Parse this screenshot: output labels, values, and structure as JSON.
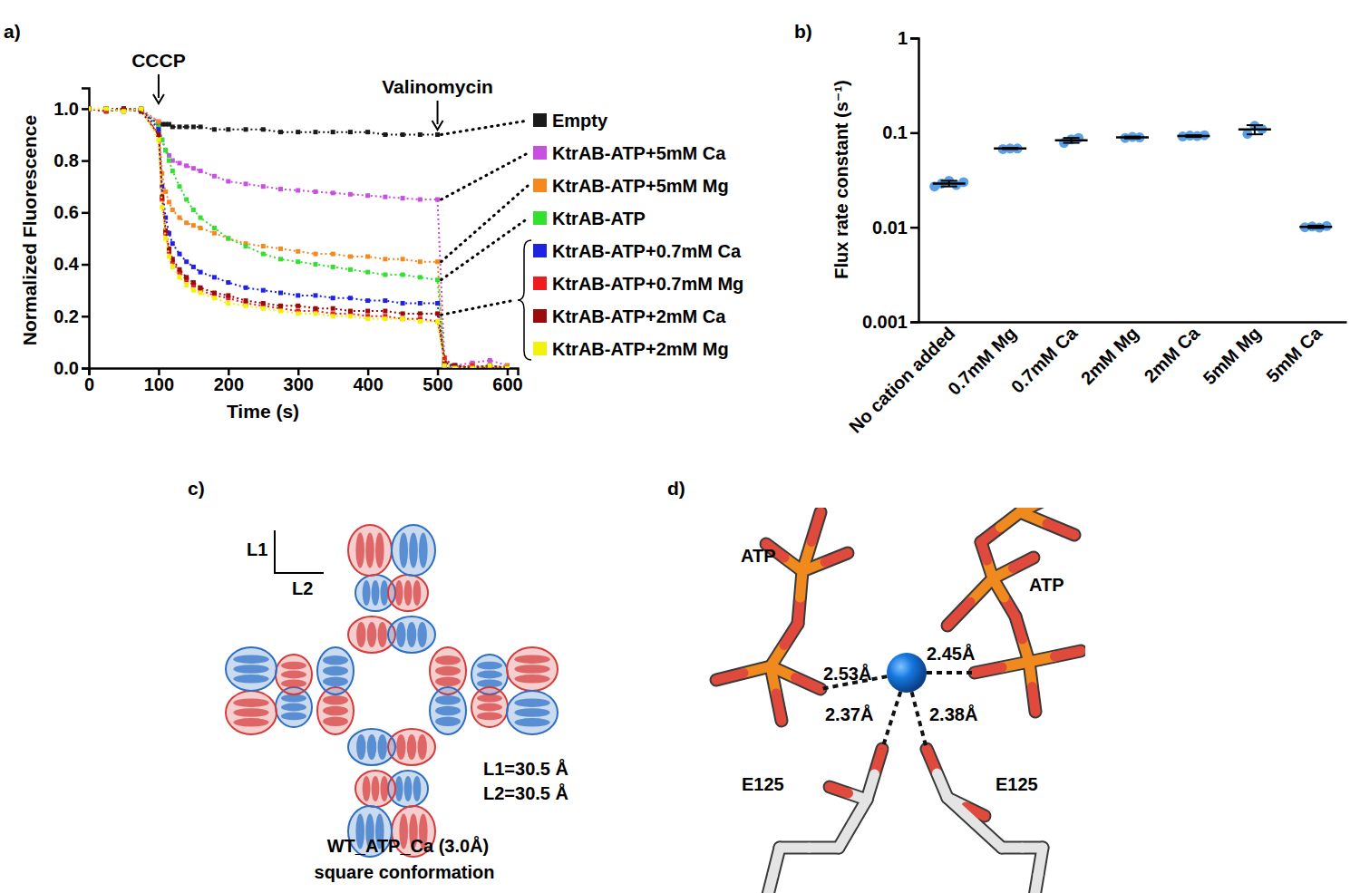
{
  "chart_data": [
    {
      "type": "line",
      "xlabel": "Time (s)",
      "ylabel": "Normalized Fluorescence",
      "x": [
        0,
        25,
        50,
        75,
        100,
        105,
        110,
        115,
        120,
        130,
        140,
        150,
        160,
        180,
        200,
        225,
        250,
        275,
        300,
        325,
        350,
        375,
        400,
        425,
        450,
        475,
        500,
        510,
        525,
        550,
        575,
        600
      ],
      "series": [
        {
          "name": "Empty",
          "color": "#1a1a1a",
          "values": [
            1.0,
            0.99,
            1.0,
            0.99,
            0.94,
            0.94,
            0.94,
            0.94,
            0.93,
            0.93,
            0.93,
            0.93,
            0.93,
            0.92,
            0.92,
            0.92,
            0.92,
            0.91,
            0.91,
            0.91,
            0.91,
            0.91,
            0.91,
            0.9,
            0.9,
            0.9,
            0.9,
            null,
            null,
            null,
            null,
            null
          ]
        },
        {
          "name": "KtrAB-ATP+5mM Ca",
          "color": "#c94fe0",
          "values": [
            1.0,
            1.0,
            1.0,
            0.99,
            0.95,
            0.88,
            0.84,
            0.82,
            0.8,
            0.79,
            0.78,
            0.77,
            0.76,
            0.74,
            0.72,
            0.71,
            0.7,
            0.69,
            0.685,
            0.68,
            0.675,
            0.67,
            0.665,
            0.66,
            0.655,
            0.65,
            0.65,
            0.03,
            0.01,
            0.02,
            0.03,
            0.01
          ]
        },
        {
          "name": "KtrAB-ATP+5mM Mg",
          "color": "#f5891f",
          "values": [
            1.0,
            1.0,
            0.99,
            1.0,
            0.95,
            0.75,
            0.68,
            0.64,
            0.61,
            0.58,
            0.56,
            0.55,
            0.54,
            0.52,
            0.5,
            0.48,
            0.47,
            0.46,
            0.45,
            0.44,
            0.44,
            0.43,
            0.43,
            0.42,
            0.42,
            0.41,
            0.41,
            0.01,
            0.0,
            0.01,
            0.0,
            0.01
          ]
        },
        {
          "name": "KtrAB-ATP",
          "color": "#33e02f",
          "values": [
            1.0,
            0.99,
            1.0,
            1.0,
            0.93,
            0.88,
            0.84,
            0.8,
            0.76,
            0.7,
            0.65,
            0.61,
            0.58,
            0.54,
            0.5,
            0.47,
            0.44,
            0.42,
            0.41,
            0.4,
            0.39,
            0.38,
            0.37,
            0.36,
            0.36,
            0.35,
            0.34,
            0.02,
            0.01,
            0.0,
            0.01,
            0.0
          ]
        },
        {
          "name": "KtrAB-ATP+0.7mM Ca",
          "color": "#1f22e0",
          "values": [
            1.0,
            1.0,
            0.99,
            1.0,
            0.92,
            0.7,
            0.58,
            0.52,
            0.48,
            0.44,
            0.41,
            0.39,
            0.37,
            0.35,
            0.33,
            0.31,
            0.3,
            0.29,
            0.28,
            0.28,
            0.27,
            0.27,
            0.26,
            0.26,
            0.25,
            0.25,
            0.25,
            0.01,
            0.01,
            0.0,
            0.01,
            0.0
          ]
        },
        {
          "name": "KtrAB-ATP+0.7mM Mg",
          "color": "#ee1c1c",
          "values": [
            1.0,
            0.99,
            1.0,
            1.0,
            0.9,
            0.65,
            0.52,
            0.45,
            0.41,
            0.37,
            0.34,
            0.32,
            0.3,
            0.28,
            0.27,
            0.25,
            0.24,
            0.23,
            0.22,
            0.22,
            0.21,
            0.21,
            0.2,
            0.2,
            0.19,
            0.19,
            0.18,
            0.04,
            0.0,
            0.01,
            0.0,
            0.0
          ]
        },
        {
          "name": "KtrAB-ATP+2mM Ca",
          "color": "#9b0b0b",
          "values": [
            1.0,
            1.0,
            1.0,
            0.99,
            0.9,
            0.66,
            0.53,
            0.46,
            0.42,
            0.38,
            0.35,
            0.33,
            0.31,
            0.29,
            0.28,
            0.26,
            0.25,
            0.24,
            0.24,
            0.23,
            0.23,
            0.22,
            0.22,
            0.22,
            0.21,
            0.21,
            0.21,
            0.02,
            0.01,
            0.0,
            0.01,
            0.0
          ]
        },
        {
          "name": "KtrAB-ATP+2mM Mg",
          "color": "#f2f20a",
          "values": [
            1.0,
            1.0,
            0.99,
            1.0,
            0.88,
            0.62,
            0.5,
            0.43,
            0.39,
            0.35,
            0.32,
            0.3,
            0.29,
            0.27,
            0.25,
            0.24,
            0.23,
            0.22,
            0.21,
            0.21,
            0.2,
            0.2,
            0.19,
            0.19,
            0.19,
            0.18,
            0.18,
            0.01,
            0.0,
            0.0,
            0.01,
            0.0
          ]
        }
      ],
      "xlim": [
        0,
        615
      ],
      "xticks": [
        0,
        100,
        200,
        300,
        400,
        500,
        600
      ],
      "ylim": [
        0,
        1.08
      ],
      "yticks": [
        {
          "value": 0,
          "label": "0.0"
        },
        0.2,
        0.4,
        0.6,
        0.8,
        {
          "value": 1,
          "label": "1.0"
        }
      ],
      "marker": "square",
      "line_style": "dotted",
      "legend": "right",
      "annotations": [
        {
          "text": "CCCP",
          "x": 100
        },
        {
          "text": "Valinomycin",
          "x": 500
        }
      ]
    },
    {
      "type": "scatter",
      "ylabel": "Flux rate constant (s⁻¹)",
      "categories": [
        "No cation added",
        "0.7mM Mg",
        "0.7mM Ca",
        "2mM Mg",
        "2mM Ca",
        "5mM Mg",
        "5mM Ca"
      ],
      "values": [
        0.029,
        0.068,
        0.083,
        0.089,
        0.092,
        0.108,
        0.0101
      ],
      "error": [
        0.002,
        0.001,
        0.005,
        0.002,
        0.002,
        0.012,
        0.0003
      ],
      "points": [
        [
          0.027,
          0.029,
          0.031,
          0.028,
          0.03
        ],
        [
          0.067,
          0.068,
          0.068
        ],
        [
          0.078,
          0.085,
          0.088
        ],
        [
          0.088,
          0.09,
          0.089
        ],
        [
          0.091,
          0.093,
          0.092,
          0.094
        ],
        [
          0.097,
          0.118,
          0.109
        ],
        [
          0.01,
          0.0102,
          0.0099,
          0.0103
        ]
      ],
      "color": "#5aa0e6",
      "marker": "circle",
      "log": "y",
      "ylim": [
        0.001,
        1
      ],
      "yticks": [
        0.001,
        0.01,
        0.1,
        1
      ]
    }
  ],
  "figure": {
    "panel_labels": [
      "a)",
      "b)",
      "c)",
      "d)"
    ],
    "panel_c": {
      "axis_labels": [
        "L1",
        "L2"
      ],
      "measurements": [
        "L1=30.5 Å",
        "L2=30.5 Å"
      ],
      "caption": [
        "WT_ATP_Ca (3.0Å)",
        "square conformation"
      ]
    },
    "panel_d": {
      "molecules": [
        "ATP",
        "ATP"
      ],
      "residues": [
        "E125",
        "E125"
      ],
      "distances": [
        "2.53Å",
        "2.45Å",
        "2.37Å",
        "2.38Å"
      ]
    }
  }
}
